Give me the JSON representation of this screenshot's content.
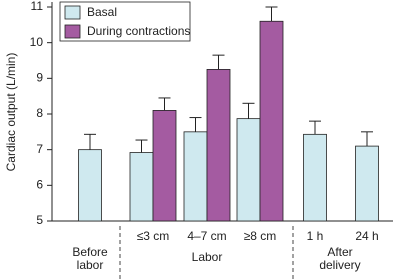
{
  "chart_data": {
    "type": "bar",
    "y_label": "Cardiac output (L/min)",
    "categories": [
      null,
      "≤3 cm",
      "4–7 cm",
      "≥8 cm",
      "1 h",
      "24 h"
    ],
    "groups": [
      {
        "label": "Before labor"
      },
      {
        "label": "Labor"
      },
      {
        "label": "After delivery"
      }
    ],
    "series": [
      {
        "name": "Basal",
        "color": "#cfe9ef",
        "values": [
          7.0,
          6.92,
          7.5,
          7.87,
          7.43,
          7.1
        ],
        "errors": [
          0.43,
          0.35,
          0.4,
          0.43,
          0.37,
          0.4
        ]
      },
      {
        "name": "During contractions",
        "color": "#a45ba1",
        "values": [
          null,
          8.1,
          9.25,
          10.6,
          null,
          null
        ],
        "errors": [
          null,
          0.35,
          0.4,
          0.4,
          null,
          null
        ]
      }
    ],
    "ylim": [
      5,
      11
    ],
    "yticks": [
      5,
      6,
      7,
      8,
      9,
      10,
      11
    ],
    "legend": "upper left"
  }
}
